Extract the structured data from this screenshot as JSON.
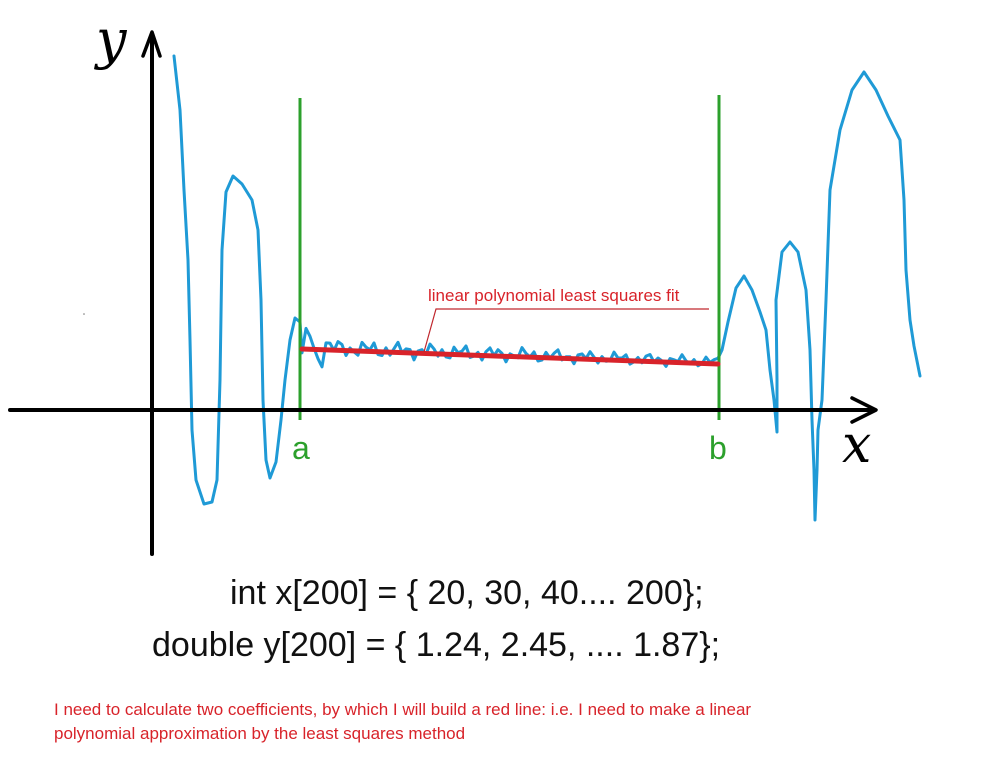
{
  "axes": {
    "y_label": "y",
    "x_label": "x",
    "color": "#000000"
  },
  "bounds": {
    "left_label": "a",
    "right_label": "b",
    "color": "#2ca02c"
  },
  "curve": {
    "color": "#1f9ad6"
  },
  "fit": {
    "label": "linear polynomial least squares fit",
    "color": "#d8232a"
  },
  "code": {
    "line1": "int x[200] = { 20, 30, 40.... 200};",
    "line2": "double y[200] = { 1.24, 2.45, .... 1.87};"
  },
  "note": {
    "line1": "I need to calculate two coefficients, by which I will build a red line: i.e. I need to make a linear",
    "line2": "polynomial approximation by the least squares method"
  }
}
